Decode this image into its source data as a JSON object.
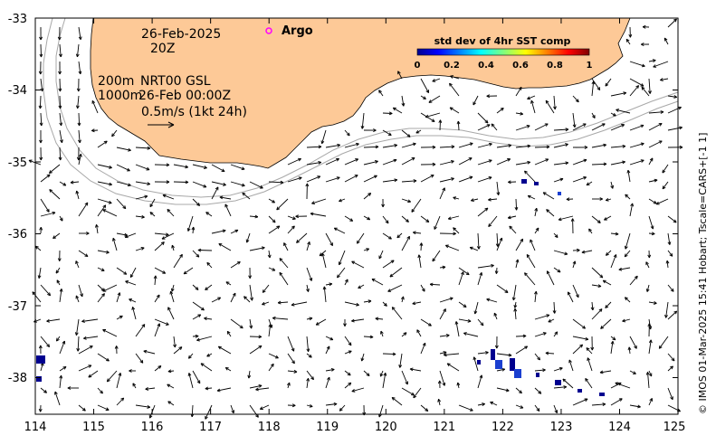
{
  "map": {
    "date_line": "26-Feb-2025",
    "time_line": "20Z",
    "depth_label_1": "200m",
    "depth_label_2": "1000m",
    "product_label": "NRT00 GSL",
    "product_time": "26-Feb 00:00Z",
    "scale_arrow_label": "0.5m/s (1kt 24h)",
    "argo_label": "Argo",
    "credit": "© IMOS 01-Mar-2025 15:41 Hobart; Tscale=CARS+[-1 1]",
    "colorbar": {
      "title": "std dev of 4hr SST comp",
      "ticks": [
        "0",
        "0.2",
        "0.4",
        "0.6",
        "0.8",
        "1"
      ]
    },
    "x_axis": {
      "ticks": [
        "114",
        "115",
        "116",
        "117",
        "118",
        "119",
        "120",
        "121",
        "122",
        "123",
        "124",
        "125"
      ]
    },
    "y_axis": {
      "ticks": [
        "-33",
        "-34",
        "-35",
        "-36",
        "-37",
        "-38"
      ]
    },
    "colors": {
      "land": "#fdc997",
      "isobath": "#a8a8a8",
      "argo_marker": "#ff00ff",
      "sst_low": "#00008f"
    }
  }
}
